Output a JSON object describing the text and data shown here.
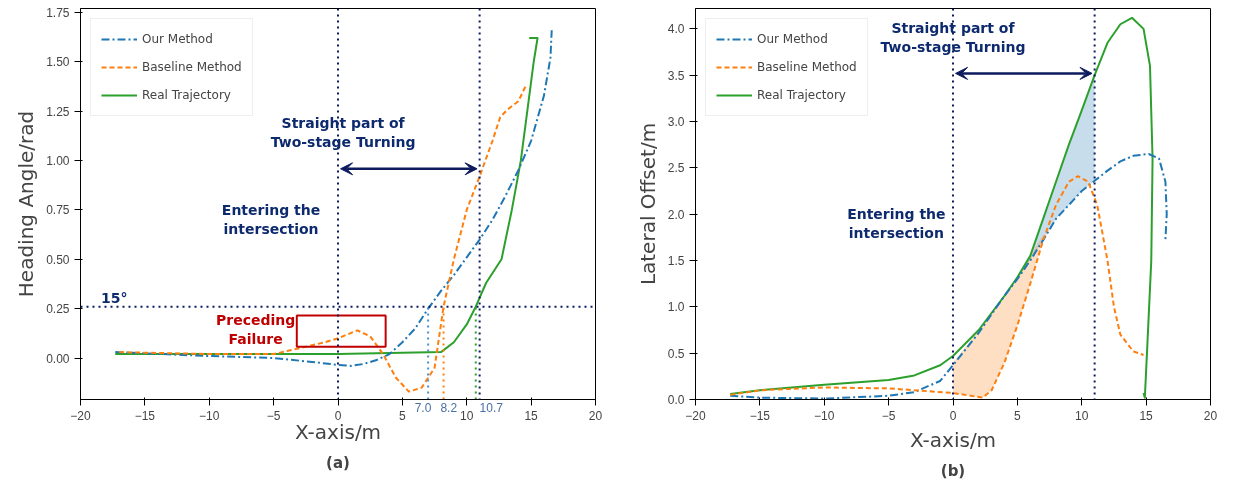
{
  "chart_data": [
    {
      "type": "line",
      "title": "(a)",
      "xlabel": "X-axis/m",
      "ylabel": "Heading Angle/rad",
      "xlim": [
        -20,
        20
      ],
      "ylim": [
        -0.21,
        1.77
      ],
      "xticks": [
        -20,
        -15,
        -10,
        -5,
        0,
        5,
        10,
        15,
        20
      ],
      "yticks": [
        {
          "value": 0,
          "label": "0.00"
        },
        {
          "value": 0.25,
          "label": "0.25"
        },
        {
          "value": 0.5,
          "label": "0.50"
        },
        {
          "value": 0.75,
          "label": "0.75"
        },
        {
          "value": 1.0,
          "label": "1.00"
        },
        {
          "value": 1.25,
          "label": "1.25"
        },
        {
          "value": 1.5,
          "label": "1.50"
        },
        {
          "value": 1.75,
          "label": "1.75"
        }
      ],
      "grid": false,
      "legend": "top left",
      "series": [
        {
          "name": "Our Method",
          "color": "#1f77b4",
          "line_style": "dashdot",
          "x": [
            -17.3,
            -10,
            -5,
            -2,
            0,
            1,
            2,
            3,
            4,
            5,
            6,
            7,
            8,
            9,
            10,
            11,
            12,
            13,
            14,
            15,
            16,
            16.5,
            16.6
          ],
          "values": [
            0.03,
            0.01,
            0.0,
            -0.02,
            -0.035,
            -0.04,
            -0.03,
            -0.01,
            0.02,
            0.08,
            0.15,
            0.25,
            0.34,
            0.42,
            0.51,
            0.6,
            0.7,
            0.82,
            0.95,
            1.1,
            1.33,
            1.52,
            1.66
          ]
        },
        {
          "name": "Baseline Method",
          "color": "#ff7f0e",
          "line_style": "dashed",
          "x": [
            -17.0,
            -10,
            -5,
            -3,
            -1,
            0,
            1.5,
            2.5,
            3.5,
            4.5,
            5.5,
            6.5,
            7.5,
            8.2,
            9,
            10,
            11,
            12,
            12.6,
            13.2,
            14,
            14.6
          ],
          "values": [
            0.03,
            0.02,
            0.02,
            0.05,
            0.08,
            0.1,
            0.14,
            0.11,
            0.02,
            -0.1,
            -0.17,
            -0.15,
            -0.05,
            0.26,
            0.5,
            0.75,
            0.92,
            1.1,
            1.22,
            1.26,
            1.3,
            1.38
          ]
        },
        {
          "name": "Real Trajectory",
          "color": "#2ca02c",
          "line_style": "solid",
          "x": [
            -17.3,
            -10,
            0,
            8,
            9,
            10,
            10.7,
            11.5,
            12.7,
            13.5,
            14.2,
            14.8,
            15.2,
            15.4,
            15.5,
            15.2,
            14.85
          ],
          "values": [
            0.02,
            0.02,
            0.02,
            0.03,
            0.08,
            0.17,
            0.26,
            0.38,
            0.5,
            0.75,
            1.0,
            1.3,
            1.5,
            1.58,
            1.62,
            1.62,
            1.62
          ]
        }
      ],
      "ref_lines": [
        {
          "axis": "x",
          "value": 0,
          "color": "#0d1b5e",
          "line_style": "dotted"
        },
        {
          "axis": "x",
          "value": 11,
          "color": "#0d1b5e",
          "line_style": "dotted"
        },
        {
          "axis": "y",
          "value": 0.26,
          "color": "#0d1b5e",
          "line_style": "dotted"
        },
        {
          "axis": "x",
          "value": 7.0,
          "label": "7.0",
          "color": "#4a8fd0",
          "line_style": "dotted"
        },
        {
          "axis": "x",
          "value": 8.2,
          "label": "8.2",
          "color": "#ff7f0e",
          "line_style": "dotted"
        },
        {
          "axis": "x",
          "value": 10.7,
          "label": "10.7",
          "color": "#2ca02c",
          "line_style": "dotted"
        }
      ],
      "annotations": [
        "Entering the intersection",
        "Straight part of Two-stage Turning",
        "Preceding Failure",
        "15°"
      ]
    },
    {
      "type": "line",
      "title": "(b)",
      "xlabel": "X-axis/m",
      "ylabel": "Lateral Offset/m",
      "xlim": [
        -20,
        20
      ],
      "ylim": [
        0,
        4.22
      ],
      "xticks": [
        -20,
        -15,
        -10,
        -5,
        0,
        5,
        10,
        15,
        20
      ],
      "yticks": [
        {
          "value": 0,
          "label": "0.0"
        },
        {
          "value": 0.5,
          "label": "0.5"
        },
        {
          "value": 1.0,
          "label": "1.0"
        },
        {
          "value": 1.5,
          "label": "1.5"
        },
        {
          "value": 2.0,
          "label": "2.0"
        },
        {
          "value": 2.5,
          "label": "2.5"
        },
        {
          "value": 3.0,
          "label": "3.0"
        },
        {
          "value": 3.5,
          "label": "3.5"
        },
        {
          "value": 4.0,
          "label": "4.0"
        }
      ],
      "grid": false,
      "legend": "top left",
      "series": [
        {
          "name": "Our Method",
          "color": "#1f77b4",
          "line_style": "dashdot",
          "x": [
            -17.3,
            -15,
            -10,
            -5,
            -3,
            -1,
            0,
            2,
            4,
            5,
            6,
            7,
            8,
            9,
            10,
            11,
            12,
            13,
            14,
            15.2,
            16,
            16.5,
            16.6,
            16.5
          ],
          "values": [
            0.04,
            0.02,
            0.01,
            0.04,
            0.08,
            0.2,
            0.37,
            0.72,
            1.12,
            1.3,
            1.5,
            1.72,
            1.95,
            2.1,
            2.25,
            2.36,
            2.47,
            2.57,
            2.63,
            2.65,
            2.6,
            2.35,
            2.0,
            1.73
          ],
          "lower": [
            null,
            null,
            null,
            null,
            null,
            null,
            null,
            null,
            null,
            1.3,
            1.5,
            1.72,
            1.95,
            2.1,
            2.25,
            2.36,
            null,
            null,
            null,
            null,
            null,
            null,
            null,
            null
          ],
          "upper": [
            null,
            null,
            null,
            null,
            null,
            null,
            null,
            null,
            null,
            1.32,
            1.55,
            1.95,
            2.35,
            2.75,
            3.12,
            3.5,
            null,
            null,
            null,
            null,
            null,
            null,
            null,
            null
          ]
        },
        {
          "name": "Baseline Method",
          "color": "#ff7f0e",
          "line_style": "dashed",
          "x": [
            -17.3,
            -15,
            -10,
            -5,
            0,
            2.3,
            3,
            4,
            5,
            6,
            7,
            8,
            9,
            9.7,
            10.5,
            11.2,
            12,
            12.5,
            13,
            14,
            14.8
          ],
          "values": [
            0.05,
            0.1,
            0.13,
            0.12,
            0.07,
            0.02,
            0.1,
            0.4,
            0.8,
            1.25,
            1.72,
            2.1,
            2.35,
            2.41,
            2.35,
            2.1,
            1.5,
            1.0,
            0.7,
            0.52,
            0.48
          ],
          "lower": [
            null,
            null,
            null,
            null,
            0.07,
            0.02,
            0.1,
            0.4,
            0.8,
            1.25,
            1.72,
            null,
            null,
            null,
            null,
            null,
            null,
            null,
            null,
            null,
            null
          ],
          "upper": [
            null,
            null,
            null,
            null,
            0.4,
            0.8,
            0.93,
            1.12,
            1.32,
            1.55,
            1.78,
            null,
            null,
            null,
            null,
            null,
            null,
            null,
            null,
            null,
            null
          ]
        },
        {
          "name": "Real Trajectory",
          "color": "#2ca02c",
          "line_style": "solid",
          "x": [
            -17.3,
            -15,
            -10,
            -5,
            -3,
            -1,
            0,
            2,
            4,
            5,
            6,
            7,
            8,
            9,
            10,
            11,
            12,
            13,
            13.9,
            14.8,
            15.3,
            15.5,
            15.4,
            15.1,
            14.9,
            14.8
          ],
          "values": [
            0.06,
            0.1,
            0.16,
            0.21,
            0.26,
            0.37,
            0.47,
            0.75,
            1.12,
            1.32,
            1.55,
            1.95,
            2.35,
            2.75,
            3.12,
            3.5,
            3.85,
            4.05,
            4.12,
            4.0,
            3.6,
            2.6,
            1.5,
            0.6,
            0.02,
            0.07
          ]
        }
      ],
      "ref_lines": [
        {
          "axis": "x",
          "value": 0,
          "color": "#0d1b5e",
          "line_style": "dotted"
        },
        {
          "axis": "x",
          "value": 11,
          "color": "#0d1b5e",
          "line_style": "dotted"
        }
      ],
      "annotations": [
        "Entering the intersection",
        "Straight part of Two-stage Turning"
      ]
    }
  ]
}
